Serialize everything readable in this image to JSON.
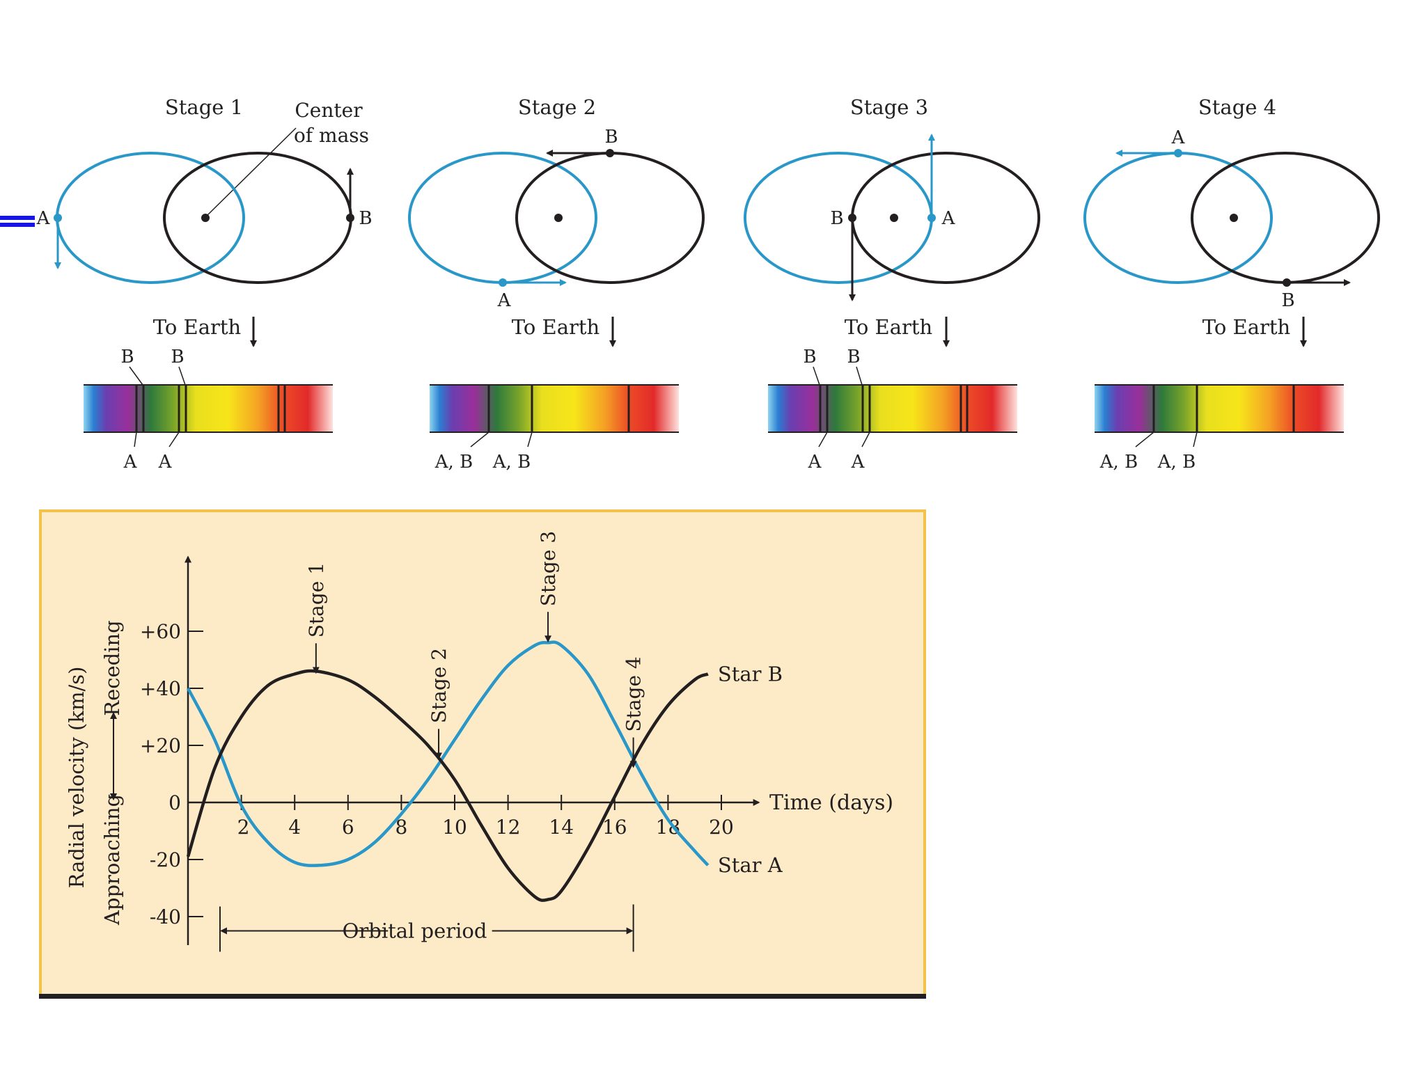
{
  "stages": [
    {
      "title": "Stage 1",
      "label_a": "A",
      "label_b": "B",
      "to_earth": "To Earth",
      "top_labels": [
        "B",
        "B"
      ],
      "bottom_labels": [
        "A",
        "A"
      ]
    },
    {
      "title": "Stage 2",
      "label_a": "A",
      "label_b": "B",
      "to_earth": "To Earth",
      "top_labels": [],
      "bottom_labels": [
        "A, B",
        "A, B"
      ]
    },
    {
      "title": "Stage 3",
      "label_a": "A",
      "label_b": "B",
      "to_earth": "To Earth",
      "top_labels": [
        "B",
        "B"
      ],
      "bottom_labels": [
        "A",
        "A"
      ]
    },
    {
      "title": "Stage 4",
      "label_a": "A",
      "label_b": "B",
      "to_earth": "To Earth",
      "top_labels": [],
      "bottom_labels": [
        "A, B",
        "A, B"
      ]
    }
  ],
  "center_of_mass": {
    "line1": "Center",
    "line2": "of mass"
  },
  "colors": {
    "star_a": "#2a97c9",
    "star_b": "#231f20",
    "panel_bg": "#fdebc8",
    "panel_border": "#f3c24a"
  },
  "chart_data": {
    "type": "line",
    "xlabel": "Time (days)",
    "ylabel": "Radial velocity (km/s)",
    "ylabel_receding": "Receding",
    "ylabel_approaching": "Approaching",
    "x_ticks": [
      2,
      4,
      6,
      8,
      10,
      12,
      14,
      16,
      18,
      20
    ],
    "y_ticks": [
      60,
      40,
      20,
      0,
      -20,
      -40
    ],
    "y_tick_labels": [
      "+60",
      "+40",
      "+20",
      "0",
      "-20",
      "-40"
    ],
    "xlim": [
      0,
      22
    ],
    "ylim": [
      -55,
      90
    ],
    "series": [
      {
        "name": "Star A",
        "x": [
          0,
          1,
          2,
          3,
          4,
          5,
          6,
          7,
          8,
          9,
          10,
          11,
          12,
          13,
          13.5,
          14,
          15,
          16,
          17,
          18,
          19,
          19.5
        ],
        "y": [
          40,
          22,
          -1,
          -14,
          -21,
          -22,
          -20,
          -14,
          -4,
          8,
          22,
          36,
          48,
          55,
          56,
          55,
          45,
          28,
          10,
          -6,
          -17,
          -22
        ]
      },
      {
        "name": "Star B",
        "x": [
          0,
          1,
          2,
          3,
          4,
          4.8,
          6,
          7,
          8,
          9,
          10,
          11,
          12,
          13,
          13.5,
          14,
          15,
          16,
          17,
          18,
          19,
          19.5
        ],
        "y": [
          -19,
          12,
          30,
          41,
          45,
          46,
          43,
          37,
          29,
          20,
          8,
          -8,
          -23,
          -33,
          -34,
          -31,
          -16,
          2,
          20,
          34,
          43,
          45
        ]
      }
    ],
    "stage_markers": [
      {
        "label": "Stage 1",
        "x": 4.8
      },
      {
        "label": "Stage 2",
        "x": 9.4
      },
      {
        "label": "Stage 3",
        "x": 13.5
      },
      {
        "label": "Stage 4",
        "x": 16.7
      }
    ],
    "orbital_period": {
      "label": "Orbital period",
      "start": 1.2,
      "end": 16.7
    }
  }
}
